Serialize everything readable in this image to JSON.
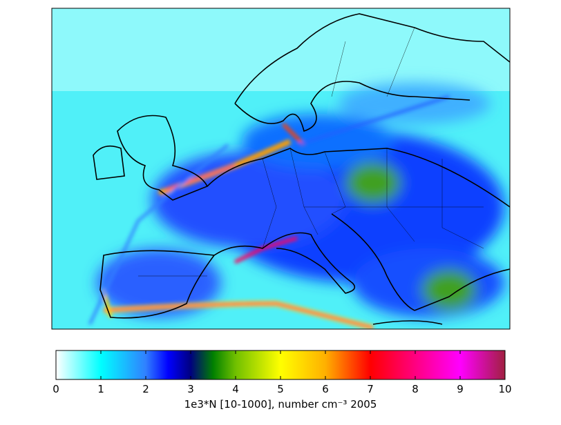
{
  "colorbar": {
    "label": "1e3*N [10-1000], number cm⁻³  2005",
    "lim": [
      0,
      10
    ],
    "ticks": [
      0,
      1,
      2,
      3,
      4,
      5,
      6,
      7,
      8,
      9,
      10
    ],
    "stops": [
      {
        "value": 0,
        "color": "#ffffff"
      },
      {
        "value": 1,
        "color": "#00ffff"
      },
      {
        "value": 2,
        "color": "#3080ff"
      },
      {
        "value": 2.5,
        "color": "#0000ff"
      },
      {
        "value": 3,
        "color": "#000080"
      },
      {
        "value": 3.5,
        "color": "#008000"
      },
      {
        "value": 4,
        "color": "#70c000"
      },
      {
        "value": 5,
        "color": "#ffff00"
      },
      {
        "value": 6,
        "color": "#ffb000"
      },
      {
        "value": 7,
        "color": "#ff0000"
      },
      {
        "value": 8,
        "color": "#ff0080"
      },
      {
        "value": 9,
        "color": "#ff00ff"
      },
      {
        "value": 10,
        "color": "#a02040"
      }
    ]
  }
}
